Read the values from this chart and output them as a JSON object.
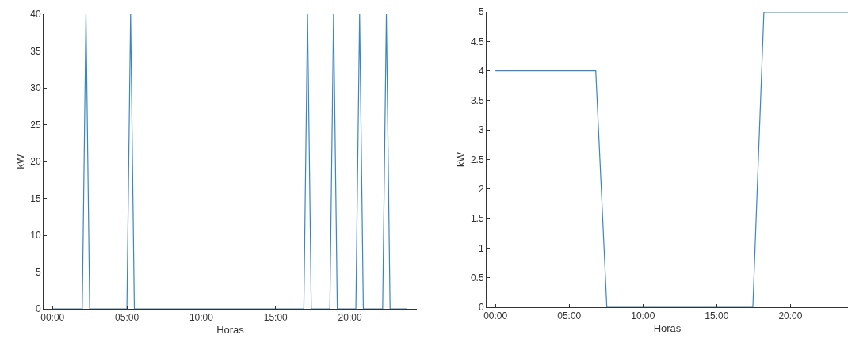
{
  "chart_data": [
    {
      "type": "line",
      "xlabel": "Horas",
      "ylabel": "kW",
      "x": [
        0,
        2.0,
        2.25,
        2.5,
        5.0,
        5.25,
        5.5,
        16.9,
        17.15,
        17.4,
        18.65,
        18.9,
        19.15,
        20.4,
        20.65,
        20.9,
        22.2,
        22.45,
        22.7,
        23.85
      ],
      "values": [
        0,
        0,
        40,
        0,
        0,
        40,
        0,
        0,
        40,
        0,
        0,
        40,
        0,
        0,
        40,
        0,
        0,
        40,
        0,
        0
      ],
      "color": "#3a86c0",
      "xlim": [
        -0.6,
        24.5
      ],
      "ylim": [
        0,
        40
      ],
      "xticks": [
        {
          "value": 0,
          "label": "00:00"
        },
        {
          "value": 5,
          "label": "05:00"
        },
        {
          "value": 10,
          "label": "10:00"
        },
        {
          "value": 15,
          "label": "15:00"
        },
        {
          "value": 20,
          "label": "20:00"
        }
      ],
      "yticks": [
        0,
        5,
        10,
        15,
        20,
        25,
        30,
        35,
        40
      ]
    },
    {
      "type": "line",
      "xlabel": "Horas",
      "ylabel": "kW",
      "x": [
        0,
        6.8,
        7.55,
        17.45,
        18.2,
        23.9
      ],
      "values": [
        4,
        4,
        0,
        0,
        5,
        5
      ],
      "color": "#3a86c0",
      "xlim": [
        -0.6,
        23.9
      ],
      "ylim": [
        0,
        5
      ],
      "xticks": [
        {
          "value": 0,
          "label": "00:00"
        },
        {
          "value": 5,
          "label": "05:00"
        },
        {
          "value": 10,
          "label": "10:00"
        },
        {
          "value": 15,
          "label": "15:00"
        },
        {
          "value": 20,
          "label": "20:00"
        }
      ],
      "yticks": [
        0,
        0.5,
        1,
        1.5,
        2,
        2.5,
        3,
        3.5,
        4,
        4.5,
        5
      ]
    }
  ]
}
